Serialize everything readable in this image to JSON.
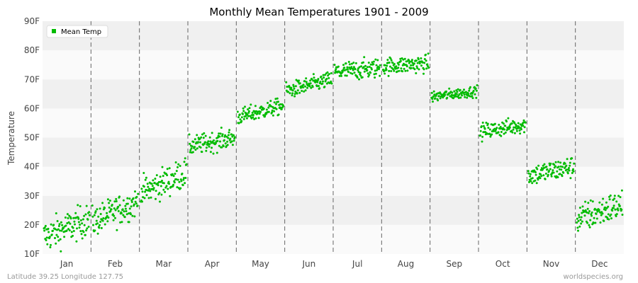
{
  "chart_data": {
    "type": "scatter",
    "title": "Monthly Mean Temperatures 1901 - 2009",
    "ylabel": "Temperature",
    "xlabel": "",
    "ylim": [
      10,
      90
    ],
    "yticks": [
      "10F",
      "20F",
      "30F",
      "40F",
      "50F",
      "60F",
      "70F",
      "80F",
      "90F"
    ],
    "categories": [
      "Jan",
      "Feb",
      "Mar",
      "Apr",
      "May",
      "Jun",
      "Jul",
      "Aug",
      "Sep",
      "Oct",
      "Nov",
      "Dec"
    ],
    "grid": "horizontal bands, dashed vertical month separators",
    "legend_position": "top-left",
    "series": [
      {
        "name": "Mean Temp",
        "color": "#00bb00",
        "points_per_month": 109,
        "monthly_ranges": [
          {
            "month": "Jan",
            "start_mean": 16.0,
            "end_mean": 22.0,
            "spread": 3.0,
            "min": 10.5,
            "max": 27.5
          },
          {
            "month": "Feb",
            "start_mean": 21.0,
            "end_mean": 28.0,
            "spread": 2.8,
            "min": 17.0,
            "max": 31.5
          },
          {
            "month": "Mar",
            "start_mean": 31.0,
            "end_mean": 38.0,
            "spread": 2.8,
            "min": 28.0,
            "max": 43.0
          },
          {
            "month": "Apr",
            "start_mean": 47.0,
            "end_mean": 50.0,
            "spread": 1.8,
            "min": 44.5,
            "max": 54.5
          },
          {
            "month": "May",
            "start_mean": 57.0,
            "end_mean": 61.0,
            "spread": 1.5,
            "min": 53.0,
            "max": 63.5
          },
          {
            "month": "Jun",
            "start_mean": 66.0,
            "end_mean": 70.0,
            "spread": 1.5,
            "min": 63.0,
            "max": 73.0
          },
          {
            "month": "Jul",
            "start_mean": 72.5,
            "end_mean": 74.0,
            "spread": 1.8,
            "min": 69.0,
            "max": 80.5
          },
          {
            "month": "Aug",
            "start_mean": 74.5,
            "end_mean": 75.5,
            "spread": 1.6,
            "min": 71.0,
            "max": 79.0
          },
          {
            "month": "Sep",
            "start_mean": 64.0,
            "end_mean": 66.0,
            "spread": 1.0,
            "min": 61.5,
            "max": 68.0
          },
          {
            "month": "Oct",
            "start_mean": 52.0,
            "end_mean": 54.5,
            "spread": 1.5,
            "min": 48.0,
            "max": 58.5
          },
          {
            "month": "Nov",
            "start_mean": 37.0,
            "end_mean": 40.0,
            "spread": 2.0,
            "min": 32.0,
            "max": 45.0
          },
          {
            "month": "Dec",
            "start_mean": 22.0,
            "end_mean": 27.0,
            "spread": 2.8,
            "min": 16.5,
            "max": 32.0
          }
        ]
      }
    ]
  },
  "footer": {
    "left": "Latitude 39.25 Longitude 127.75",
    "right": "worldspecies.org"
  },
  "colors": {
    "band_light": "#fafafa",
    "band_dark": "#f0f0f0",
    "separator": "#666666",
    "plot_border": "#dddddd"
  }
}
